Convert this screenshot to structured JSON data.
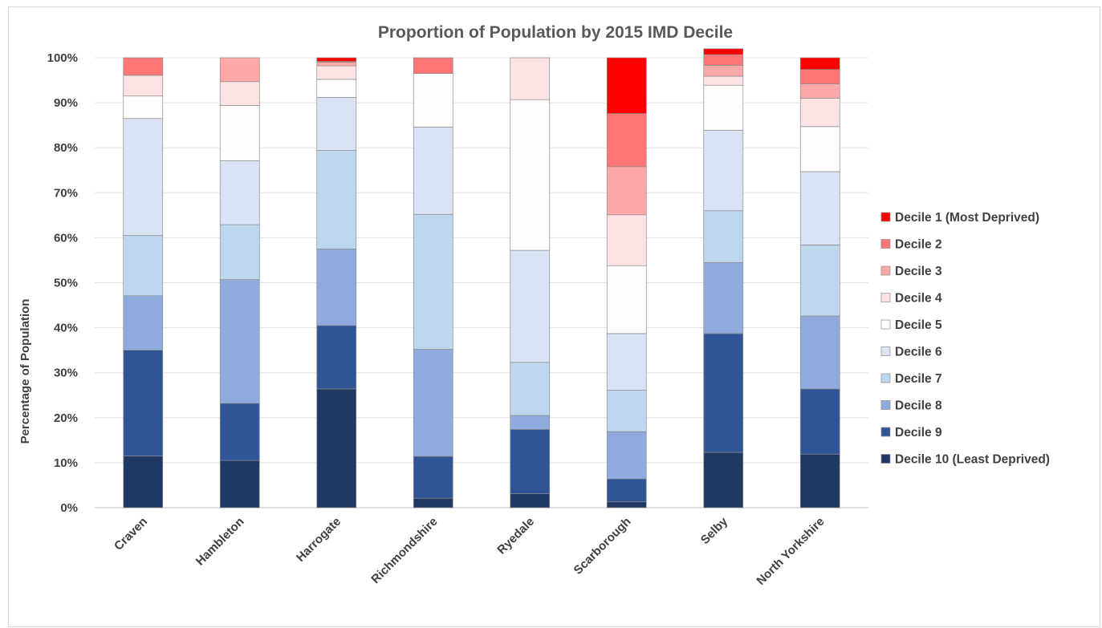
{
  "chart_data": {
    "type": "bar",
    "stacked": true,
    "title": "Proportion of Population by 2015 IMD Decile",
    "ylabel": "Percentage of Population",
    "xlabel": "",
    "ylim": [
      0,
      100
    ],
    "y_ticks": [
      "0%",
      "10%",
      "20%",
      "30%",
      "40%",
      "50%",
      "60%",
      "70%",
      "80%",
      "90%",
      "100%"
    ],
    "grid": true,
    "legend_position": "right",
    "categories": [
      "Craven",
      "Hambleton",
      "Harrogate",
      "Richmondshire",
      "Ryedale",
      "Scarborough",
      "Selby",
      "North Yorkshire"
    ],
    "series": [
      {
        "name": "Decile 10 (Least Deprived)",
        "color": "#1f3864",
        "values": [
          11.5,
          10.5,
          26.4,
          2.1,
          3.1,
          1.3,
          12.3,
          11.9
        ]
      },
      {
        "name": "Decile 9",
        "color": "#2f5597",
        "values": [
          23.5,
          12.7,
          14.1,
          9.3,
          14.3,
          5.1,
          26.4,
          14.5
        ]
      },
      {
        "name": "Decile 8",
        "color": "#8faadc",
        "values": [
          12.1,
          27.5,
          17.0,
          23.8,
          3.1,
          10.5,
          15.8,
          16.2
        ]
      },
      {
        "name": "Decile 7",
        "color": "#bdd7ee",
        "values": [
          13.4,
          12.2,
          21.9,
          30.0,
          11.8,
          9.2,
          11.5,
          15.8
        ]
      },
      {
        "name": "Decile 6",
        "color": "#dae3f3",
        "values": [
          26.0,
          14.2,
          11.8,
          19.4,
          24.9,
          12.6,
          17.9,
          16.3
        ]
      },
      {
        "name": "Decile 5",
        "color": "#fffdfb",
        "values": [
          5.0,
          12.3,
          4.0,
          11.9,
          33.5,
          15.1,
          10.0,
          10.0
        ]
      },
      {
        "name": "Decile 4",
        "color": "#fde3e3",
        "values": [
          4.6,
          5.3,
          3.0,
          0.0,
          9.3,
          11.3,
          2.0,
          6.3
        ]
      },
      {
        "name": "Decile 3",
        "color": "#ffa8a8",
        "values": [
          0.0,
          5.3,
          0.8,
          0.0,
          0.0,
          10.7,
          2.4,
          3.2
        ]
      },
      {
        "name": "Decile 2",
        "color": "#ff7676",
        "values": [
          3.9,
          0.0,
          0.2,
          3.5,
          0.0,
          11.8,
          2.4,
          3.2
        ]
      },
      {
        "name": "Decile 1 (Most Deprived)",
        "color": "#ff0000",
        "values": [
          0.0,
          0.0,
          0.8,
          0.0,
          0.0,
          12.4,
          1.3,
          2.6
        ]
      }
    ]
  }
}
